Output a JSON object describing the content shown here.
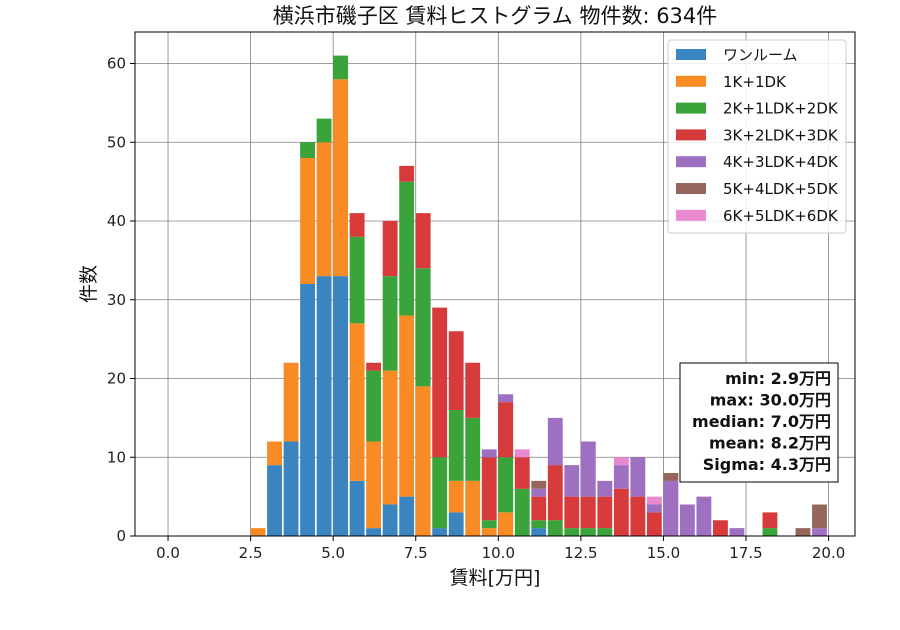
{
  "chart_data": {
    "type": "bar",
    "stacked": true,
    "title": "横浜市磯子区 賃料ヒストグラム 物件数: 634件",
    "xlabel": "賃料[万円]",
    "ylabel": "件数",
    "xlim": [
      -1.0,
      20.8
    ],
    "ylim": [
      0,
      64
    ],
    "xticks": [
      "0.0",
      "2.5",
      "5.0",
      "7.5",
      "10.0",
      "12.5",
      "15.0",
      "17.5",
      "20.0"
    ],
    "yticks": [
      "0",
      "10",
      "20",
      "30",
      "40",
      "50",
      "60"
    ],
    "grid": true,
    "legend_position": "top-right",
    "bin_width": 0.5,
    "x": [
      2.5,
      3.0,
      3.5,
      4.0,
      4.5,
      5.0,
      5.5,
      6.0,
      6.5,
      7.0,
      7.5,
      8.0,
      8.5,
      9.0,
      9.5,
      10.0,
      10.5,
      11.0,
      11.5,
      12.0,
      12.5,
      13.0,
      13.5,
      14.0,
      14.5,
      15.0,
      15.5,
      16.0,
      16.5,
      17.0,
      18.0,
      19.0,
      19.5
    ],
    "series": [
      {
        "name": "ワンルーム",
        "color": "#3a85c0",
        "values": [
          0,
          9,
          12,
          32,
          33,
          33,
          7,
          1,
          4,
          5,
          0,
          1,
          3,
          0,
          0,
          0,
          0,
          1,
          0,
          0,
          0,
          0,
          0,
          0,
          0,
          0,
          0,
          0,
          0,
          0,
          0,
          0,
          0
        ]
      },
      {
        "name": "1K+1DK",
        "color": "#f98b25",
        "values": [
          1,
          3,
          10,
          16,
          17,
          25,
          20,
          11,
          17,
          23,
          19,
          0,
          4,
          7,
          1,
          3,
          0,
          0,
          0,
          0,
          0,
          0,
          0,
          0,
          0,
          0,
          0,
          0,
          0,
          0,
          0,
          0,
          0
        ]
      },
      {
        "name": "2K+1LDK+2DK",
        "color": "#3aa43a",
        "values": [
          0,
          0,
          0,
          2,
          3,
          3,
          11,
          9,
          12,
          17,
          15,
          9,
          9,
          8,
          1,
          7,
          6,
          1,
          2,
          1,
          1,
          1,
          0,
          0,
          0,
          0,
          0,
          0,
          0,
          0,
          1,
          0,
          0
        ]
      },
      {
        "name": "3K+2LDK+3DK",
        "color": "#d63a3a",
        "values": [
          0,
          0,
          0,
          0,
          0,
          0,
          3,
          1,
          7,
          2,
          7,
          19,
          10,
          7,
          8,
          7,
          4,
          3,
          7,
          4,
          4,
          4,
          6,
          5,
          3,
          0,
          0,
          0,
          2,
          0,
          2,
          0,
          0
        ]
      },
      {
        "name": "4K+3LDK+4DK",
        "color": "#9f70c2",
        "values": [
          0,
          0,
          0,
          0,
          0,
          0,
          0,
          0,
          0,
          0,
          0,
          0,
          0,
          0,
          1,
          1,
          0,
          1,
          6,
          4,
          7,
          2,
          3,
          5,
          1,
          7,
          4,
          5,
          0,
          1,
          0,
          0,
          1
        ]
      },
      {
        "name": "5K+4LDK+5DK",
        "color": "#95665b",
        "values": [
          0,
          0,
          0,
          0,
          0,
          0,
          0,
          0,
          0,
          0,
          0,
          0,
          0,
          0,
          0,
          0,
          0,
          1,
          0,
          0,
          0,
          0,
          0,
          0,
          0,
          1,
          0,
          0,
          0,
          0,
          0,
          1,
          3
        ]
      },
      {
        "name": "6K+5LDK+6DK",
        "color": "#e98ad0",
        "values": [
          0,
          0,
          0,
          0,
          0,
          0,
          0,
          0,
          0,
          0,
          0,
          0,
          0,
          0,
          0,
          0,
          1,
          0,
          0,
          0,
          0,
          0,
          1,
          0,
          1,
          0,
          0,
          0,
          0,
          0,
          0,
          0,
          0
        ]
      }
    ],
    "stats_box": [
      "min: 2.9万円",
      "max: 30.0万円",
      "median: 7.0万円",
      "mean: 8.2万円",
      "Sigma: 4.3万円"
    ]
  }
}
